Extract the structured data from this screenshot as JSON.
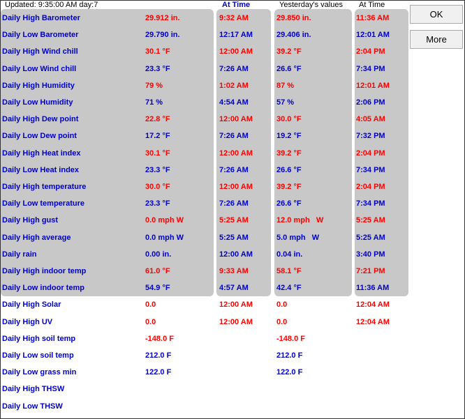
{
  "header": {
    "updated": "Updated: 9:35:00 AM day:7",
    "at_time": "At Time",
    "yesterday": "Yesterday's values",
    "at_time_2": "At Time"
  },
  "buttons": {
    "ok": "OK",
    "more": "More"
  },
  "rows": [
    {
      "label": "Daily High Barometer",
      "today": "29.912 in.",
      "time": "9:32 AM",
      "yesterday": "29.850 in.",
      "yesterday_time": "11:36 AM",
      "color": "#ff0000"
    },
    {
      "label": "Daily Low Barometer",
      "today": "29.790 in.",
      "time": "12:17 AM",
      "yesterday": "29.406 in.",
      "yesterday_time": "12:01 AM",
      "color": "#0000cc"
    },
    {
      "label": "Daily High Wind chill",
      "today": "30.1 °F",
      "time": "12:00 AM",
      "yesterday": "39.2 °F",
      "yesterday_time": "2:04 PM",
      "color": "#ff0000"
    },
    {
      "label": "Daily Low Wind chill",
      "today": "23.3 °F",
      "time": "7:26 AM",
      "yesterday": "26.6 °F",
      "yesterday_time": "7:34 PM",
      "color": "#0000cc"
    },
    {
      "label": "Daily High Humidity",
      "today": "79 %",
      "time": "1:02 AM",
      "yesterday": "87 %",
      "yesterday_time": "12:01 AM",
      "color": "#ff0000"
    },
    {
      "label": "Daily Low Humidity",
      "today": "71 %",
      "time": "4:54 AM",
      "yesterday": "57 %",
      "yesterday_time": "2:06 PM",
      "color": "#0000cc"
    },
    {
      "label": "Daily High Dew point",
      "today": "22.8 °F",
      "time": "12:00 AM",
      "yesterday": "30.0 °F",
      "yesterday_time": "4:05 AM",
      "color": "#ff0000"
    },
    {
      "label": "Daily Low Dew point",
      "today": "17.2 °F",
      "time": "7:26 AM",
      "yesterday": "19.2 °F",
      "yesterday_time": "7:32 PM",
      "color": "#0000cc"
    },
    {
      "label": "Daily High Heat index",
      "today": "30.1 °F",
      "time": "12:00 AM",
      "yesterday": "39.2 °F",
      "yesterday_time": "2:04 PM",
      "color": "#ff0000"
    },
    {
      "label": "Daily Low Heat index",
      "today": "23.3 °F",
      "time": "7:26 AM",
      "yesterday": "26.6 °F",
      "yesterday_time": "7:34 PM",
      "color": "#0000cc"
    },
    {
      "label": "Daily High temperature",
      "today": "30.0 °F",
      "time": "12:00 AM",
      "yesterday": "39.2 °F",
      "yesterday_time": "2:04 PM",
      "color": "#ff0000"
    },
    {
      "label": "Daily Low temperature",
      "today": "23.3 °F",
      "time": "7:26 AM",
      "yesterday": "26.6 °F",
      "yesterday_time": "7:34 PM",
      "color": "#0000cc"
    },
    {
      "label": "Daily High gust",
      "today": "0.0 mph W",
      "time": "5:25 AM",
      "yesterday": "12.0 mph   W",
      "yesterday_time": "5:25 AM",
      "color": "#ff0000"
    },
    {
      "label": "Daily High average",
      "today": "0.0 mph W",
      "time": "5:25 AM",
      "yesterday": "5.0 mph   W",
      "yesterday_time": "5:25 AM",
      "color": "#0000cc"
    },
    {
      "label": "Daily rain",
      "today": "0.00 in.",
      "time": "12:00 AM",
      "yesterday": "0.04 in.",
      "yesterday_time": "3:40 PM",
      "color": "#0000cc"
    },
    {
      "label": "Daily High indoor temp",
      "today": "61.0 °F",
      "time": "9:33 AM",
      "yesterday": "58.1 °F",
      "yesterday_time": "7:21 PM",
      "color": "#ff0000"
    },
    {
      "label": "Daily Low indoor temp",
      "today": "54.9 °F",
      "time": "4:57 AM",
      "yesterday": "42.4 °F",
      "yesterday_time": "11:36 AM",
      "color": "#0000cc"
    },
    {
      "label": "Daily High Solar",
      "today": "0.0",
      "time": "12:00 AM",
      "yesterday": "0.0",
      "yesterday_time": "12:04 AM",
      "color": "#ff0000"
    },
    {
      "label": "Daily High UV",
      "today": "0.0",
      "time": "12:00 AM",
      "yesterday": "0.0",
      "yesterday_time": "12:04 AM",
      "color": "#ff0000"
    },
    {
      "label": "Daily High soil temp",
      "today": "-148.0 F",
      "yesterday": "-148.0 F",
      "color": "#ff0000"
    },
    {
      "label": "Daily Low soil temp",
      "today": "212.0 F",
      "yesterday": "212.0 F",
      "color": "#0000cc"
    },
    {
      "label": "Daily Low grass min",
      "today": "122.0 F",
      "yesterday": "122.0 F",
      "color": "#0000cc"
    },
    {
      "label": "Daily High THSW",
      "color": "#0000cc"
    },
    {
      "label": "Daily Low THSW",
      "color": "#0000cc"
    }
  ]
}
